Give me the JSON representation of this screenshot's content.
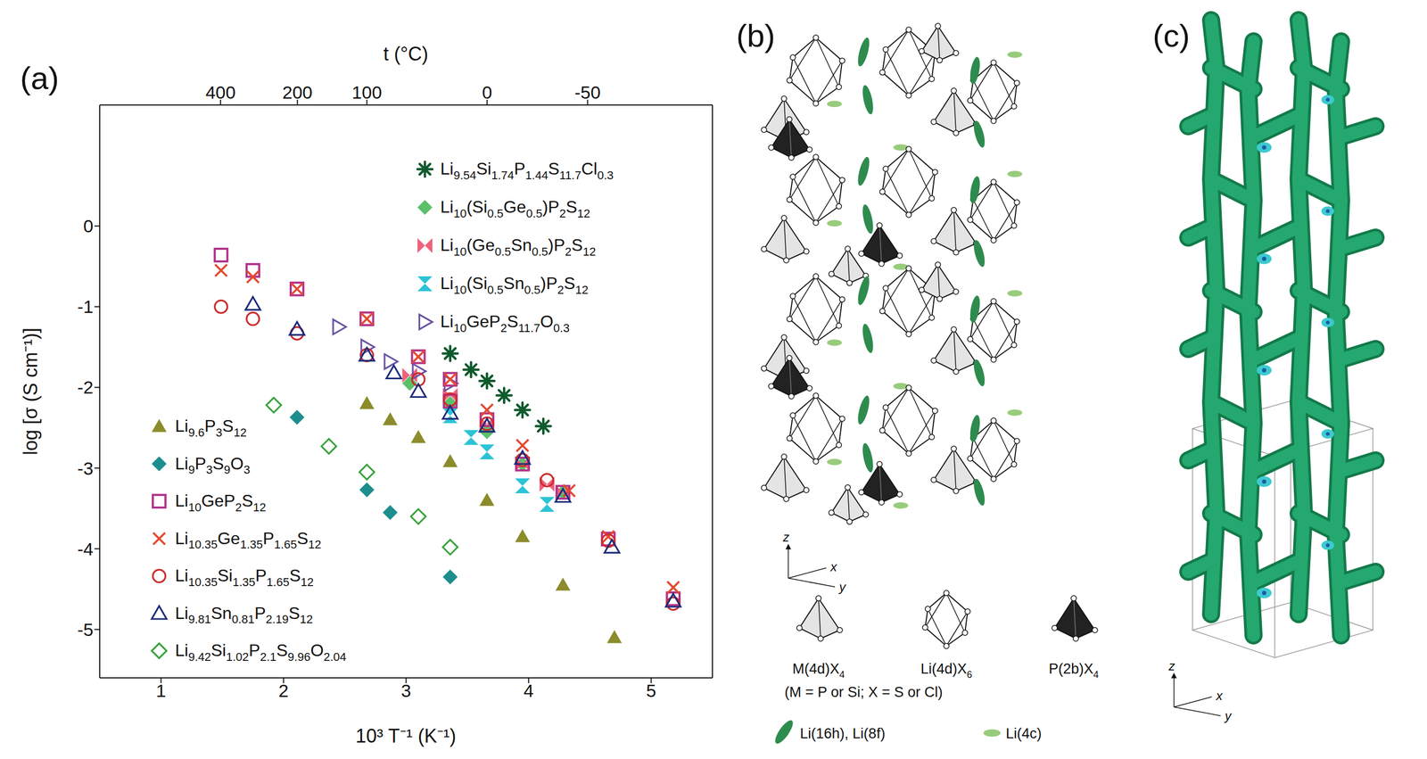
{
  "chart_data": {
    "type": "scatter",
    "xlabel": "10³ T⁻¹ (K⁻¹)",
    "ylabel": "log [σ (S cm⁻¹)]",
    "x2label": "t (°C)",
    "xlim": [
      0.5,
      5.5
    ],
    "xticks": [
      1,
      2,
      3,
      4,
      5
    ],
    "x2lim": [
      0.5,
      5.5
    ],
    "x2ticks": [
      {
        "value": 1.486,
        "label": "400"
      },
      {
        "value": 2.113,
        "label": "200"
      },
      {
        "value": 2.68,
        "label": "100"
      },
      {
        "value": 3.661,
        "label": "0"
      },
      {
        "value": 4.481,
        "label": "-50"
      }
    ],
    "ylim": [
      -5.6,
      1.5
    ],
    "yticks": [
      -5,
      -4,
      -3,
      -2,
      -1,
      0
    ],
    "grid": false,
    "series": [
      {
        "name": "Li9.54Si1.74P1.44S11.7Cl0.3",
        "color": "#0f5a2c",
        "marker": "asterisk",
        "legend": "upper right",
        "x": [
          3.36,
          3.53,
          3.66,
          3.8,
          3.95,
          4.12
        ],
        "values": [
          -1.58,
          -1.78,
          -1.92,
          -2.1,
          -2.28,
          -2.48
        ]
      },
      {
        "name": "Li10(Si0.5Ge0.5)P2S12",
        "color": "#5cbf6a",
        "marker": "diamond",
        "legend": "upper right",
        "x": [
          3.03,
          3.36,
          3.66,
          3.95,
          4.28
        ],
        "values": [
          -1.95,
          -2.2,
          -2.55,
          -2.95,
          -3.3
        ]
      },
      {
        "name": "Li10(Ge0.5Sn0.5)P2S12",
        "color": "#f0607c",
        "marker": "bowtie",
        "legend": "upper right",
        "x": [
          3.03,
          3.36,
          3.66,
          3.95,
          4.15,
          4.28
        ],
        "values": [
          -1.85,
          -2.1,
          -2.45,
          -2.95,
          -3.2,
          -3.3
        ]
      },
      {
        "name": "Li10(Si0.5Sn0.5)P2S12",
        "color": "#2cc3d6",
        "marker": "hourglass",
        "legend": "upper right",
        "x": [
          3.36,
          3.53,
          3.66,
          3.95,
          4.15
        ],
        "values": [
          -2.35,
          -2.62,
          -2.8,
          -3.22,
          -3.45
        ]
      },
      {
        "name": "Li10GeP2S11.7O0.3",
        "color": "#6b52a3",
        "marker": "triangle_right_open",
        "legend": "upper right",
        "x": [
          2.45,
          2.68,
          2.87,
          3.1,
          3.36
        ],
        "values": [
          -1.25,
          -1.5,
          -1.68,
          -1.8,
          -1.95
        ]
      },
      {
        "name": "Li9.6P3S12",
        "color": "#8c8c2c",
        "marker": "triangle",
        "legend": "lower left",
        "x": [
          2.68,
          2.87,
          3.1,
          3.36,
          3.66,
          3.95,
          4.28,
          4.7
        ],
        "values": [
          -2.2,
          -2.4,
          -2.62,
          -2.92,
          -3.4,
          -3.85,
          -4.45,
          -5.1
        ]
      },
      {
        "name": "Li9P3S9O3",
        "color": "#1d8e8e",
        "marker": "diamond",
        "legend": "lower left",
        "x": [
          2.11,
          2.68,
          2.87,
          3.36
        ],
        "values": [
          -2.37,
          -3.27,
          -3.55,
          -4.35
        ]
      },
      {
        "name": "Li10GeP2S12",
        "color": "#b2338a",
        "marker": "square_open",
        "legend": "lower left",
        "x": [
          1.49,
          1.75,
          2.11,
          2.68,
          3.1,
          3.36,
          3.36,
          3.66,
          3.95,
          4.28,
          4.65,
          5.18
        ],
        "values": [
          -0.36,
          -0.55,
          -0.78,
          -1.15,
          -1.62,
          -1.9,
          -2.17,
          -2.4,
          -2.95,
          -3.3,
          -3.88,
          -4.62
        ]
      },
      {
        "name": "Li10.35Ge1.35P1.65S12",
        "color": "#e5482f",
        "marker": "x",
        "legend": "lower left",
        "x": [
          1.49,
          1.75,
          2.11,
          2.68,
          3.1,
          3.36,
          3.66,
          3.95,
          4.33,
          4.65,
          5.18
        ],
        "values": [
          -0.55,
          -0.63,
          -0.78,
          -1.15,
          -1.62,
          -1.9,
          -2.28,
          -2.72,
          -3.28,
          -3.85,
          -4.48
        ]
      },
      {
        "name": "Li10.35Si1.35P1.65S12",
        "color": "#cc2b2b",
        "marker": "circle_open",
        "legend": "lower left",
        "x": [
          1.49,
          1.75,
          2.11,
          2.68,
          3.1,
          3.36,
          3.66,
          3.95,
          4.15,
          4.65,
          5.18
        ],
        "values": [
          -1.0,
          -1.15,
          -1.33,
          -1.6,
          -1.9,
          -2.15,
          -2.45,
          -2.9,
          -3.15,
          -3.9,
          -4.68
        ]
      },
      {
        "name": "Li9.81Sn0.81P2.19S12",
        "color": "#1c2b7c",
        "marker": "triangle_open",
        "legend": "lower left",
        "x": [
          1.75,
          2.11,
          2.68,
          2.9,
          3.1,
          3.36,
          3.66,
          3.95,
          4.28,
          4.68,
          5.18
        ],
        "values": [
          -0.97,
          -1.28,
          -1.6,
          -1.82,
          -2.05,
          -2.32,
          -2.48,
          -2.88,
          -3.35,
          -3.98,
          -4.65
        ]
      },
      {
        "name": "Li9.42Si1.02P2.1S9.96O2.04",
        "color": "#36a33a",
        "marker": "diamond_open",
        "legend": "lower left",
        "x": [
          1.92,
          2.37,
          2.68,
          3.1,
          3.36
        ],
        "values": [
          -2.22,
          -2.73,
          -3.05,
          -3.6,
          -3.98
        ]
      }
    ]
  },
  "panel_labels": [
    "(a)",
    "(b)",
    "(c)"
  ],
  "structure": {
    "axes": [
      "z",
      "x",
      "y"
    ],
    "polyhedra": [
      {
        "label": "M(4d)X4"
      },
      {
        "label": "Li(4d)X6"
      },
      {
        "label": "P(2b)X4"
      }
    ],
    "note": "(M = P or Si; X = S or Cl)",
    "sites": [
      {
        "label": "Li(16h), Li(8f)"
      },
      {
        "label": "Li(4c)"
      }
    ]
  },
  "density": {
    "axes": [
      "z",
      "x",
      "y"
    ]
  }
}
